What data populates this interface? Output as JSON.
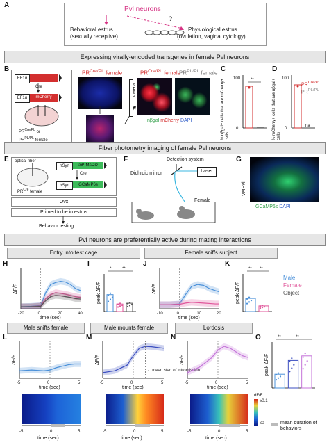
{
  "panelA": {
    "title": "Pvl neurons",
    "question": "?",
    "left_line1": "Behavioral estrus",
    "left_line2": "(sexually receptive)",
    "right_line1": "Physiological estrus",
    "right_line2": "(ovulation, vaginal cytology)"
  },
  "banners": {
    "b1": "Expressing virally-encoded transgenes in female Pvl neurons",
    "b2": "Fiber photometry imaging of female Pvl neurons",
    "b3": "Pvl neurons are preferentially active during mating interactions"
  },
  "panelB": {
    "promoter": "EF1α",
    "cre": "Cre",
    "reporter": "mCherry",
    "female_line1": "PR",
    "female_sup1": "Cre/PL",
    "female_or": "or",
    "female_line2": "PR",
    "female_sup2": "PL/PL",
    "female_suffix": "female",
    "img_label1": "PR",
    "img_sup1": "Cre/PL",
    "img_suffix1": " female",
    "img_label2": "PR",
    "img_sup2": "Cre/PL",
    "img_suffix2": " female",
    "img_label3": "PR",
    "img_sup3": "PL/PL",
    "img_suffix3": " female",
    "region": "VMHvl",
    "legend_green": "nβgal",
    "legend_red": "mCherry",
    "legend_blue": "DAPI"
  },
  "panelC": {
    "ylabel": "% nβgal+ cells that are mCherry+ cells",
    "sig": "**",
    "ticks": [
      "0",
      "100"
    ]
  },
  "panelD": {
    "ylabel": "% mCherry+ cells that are nβgal+ cells",
    "ticks": [
      "0",
      "100"
    ],
    "na": "na",
    "legend1": "PR",
    "legend1_sup": "Cre/PL",
    "legend2": "PR",
    "legend2_sup": "PL/PL",
    "legend1_color": "#d32f2f",
    "legend2_color": "#888888"
  },
  "panelE": {
    "fiber": "optical fiber",
    "female": "PR",
    "female_sup": "Cre",
    "female_suffix": " female",
    "promoter": "hSyn",
    "flipped": "GCaMP6s",
    "cre": "Cre",
    "gcamp": "GCaMP6s",
    "step1": "Ovx",
    "step2": "Primed to be in estrus",
    "step3": "Behavior testing"
  },
  "panelF": {
    "detection": "Detection system",
    "mirror": "Dichroic mirror",
    "laser": "Laser",
    "female": "Female"
  },
  "panelG": {
    "region": "VMHvl",
    "legend_green": "GCaMP6s",
    "legend_blue": "DAPI"
  },
  "section_titles": {
    "entry": "Entry into test cage",
    "sniffs": "Female sniffs subject",
    "male_sniffs": "Male sniffs female",
    "mounts": "Male mounts female",
    "lordosis": "Lordosis"
  },
  "legend_hij": {
    "male": "Male",
    "female": "Female",
    "object": "Object",
    "male_color": "#4a90d9",
    "female_color": "#e0559a",
    "object_color": "#555555"
  },
  "chart_data": [
    {
      "id": "H",
      "type": "line",
      "xlabel": "time (sec)",
      "ylabel": "ΔF/F",
      "xticks": [
        "-20",
        "0",
        "20",
        "40"
      ],
      "xlim": [
        -20,
        40
      ],
      "ylim": [
        0,
        1
      ],
      "series": [
        {
          "name": "Male",
          "x": [
            -20,
            -10,
            0,
            5,
            10,
            15,
            20,
            25,
            30,
            35,
            40
          ],
          "y": [
            0.05,
            0.06,
            0.08,
            0.4,
            0.6,
            0.65,
            0.68,
            0.66,
            0.6,
            0.5,
            0.45
          ]
        },
        {
          "name": "Female",
          "x": [
            -20,
            -10,
            0,
            5,
            10,
            15,
            20,
            25,
            30,
            35,
            40
          ],
          "y": [
            0.05,
            0.05,
            0.07,
            0.25,
            0.35,
            0.4,
            0.38,
            0.36,
            0.33,
            0.3,
            0.28
          ]
        },
        {
          "name": "Object",
          "x": [
            -20,
            -10,
            0,
            5,
            10,
            15,
            20,
            25,
            30,
            35,
            40
          ],
          "y": [
            0.05,
            0.05,
            0.06,
            0.2,
            0.3,
            0.33,
            0.32,
            0.3,
            0.28,
            0.25,
            0.24
          ]
        }
      ]
    },
    {
      "id": "I",
      "type": "bar",
      "ylabel": "peak ΔF/F",
      "categories": [
        "Male",
        "Female",
        "Object"
      ],
      "values": [
        0.45,
        0.2,
        0.22
      ],
      "sig": [
        "*",
        "**"
      ]
    },
    {
      "id": "J",
      "type": "line",
      "xlabel": "time (sec)",
      "ylabel": "ΔF/F",
      "xticks": [
        "-10",
        "0",
        "10",
        "20"
      ],
      "xlim": [
        -10,
        20
      ],
      "ylim": [
        0,
        1
      ],
      "series": [
        {
          "name": "Male",
          "x": [
            -10,
            -5,
            0,
            3,
            6,
            9,
            12,
            15,
            18,
            20
          ],
          "y": [
            0.1,
            0.1,
            0.12,
            0.35,
            0.55,
            0.6,
            0.58,
            0.5,
            0.45,
            0.42
          ]
        },
        {
          "name": "Female",
          "x": [
            -10,
            -5,
            0,
            3,
            6,
            9,
            12,
            15,
            18,
            20
          ],
          "y": [
            0.1,
            0.1,
            0.11,
            0.14,
            0.16,
            0.15,
            0.14,
            0.13,
            0.12,
            0.12
          ]
        }
      ]
    },
    {
      "id": "K",
      "type": "bar",
      "ylabel": "peak ΔF/F",
      "categories": [
        "Male",
        "Female"
      ],
      "values": [
        0.35,
        0.15
      ],
      "sig": [
        "**",
        "**"
      ]
    },
    {
      "id": "L",
      "type": "line",
      "xlabel": "time (sec)",
      "ylabel": "ΔF/F",
      "xticks": [
        "-5",
        "0",
        "5"
      ],
      "xlim": [
        -5,
        5
      ],
      "ylim": [
        0,
        1
      ],
      "series": [
        {
          "name": "Male sniffs female",
          "x": [
            -5,
            -3,
            -1,
            0,
            1,
            2,
            3,
            4,
            5
          ],
          "y": [
            0.2,
            0.22,
            0.2,
            0.22,
            0.28,
            0.32,
            0.36,
            0.38,
            0.38
          ]
        }
      ]
    },
    {
      "id": "M",
      "type": "line",
      "xlabel": "time (sec)",
      "ylabel": "ΔF/F",
      "xticks": [
        "-5",
        "0",
        "5"
      ],
      "xlim": [
        -5,
        5
      ],
      "ylim": [
        0,
        1
      ],
      "annotation": "mean start of intromission",
      "series": [
        {
          "name": "Male mounts female",
          "x": [
            -5,
            -3,
            -1,
            0,
            1,
            2,
            3,
            4,
            5
          ],
          "y": [
            0.15,
            0.2,
            0.35,
            0.6,
            0.8,
            0.85,
            0.84,
            0.82,
            0.8
          ]
        }
      ]
    },
    {
      "id": "N",
      "type": "line",
      "xlabel": "time (sec)",
      "ylabel": "ΔF/F",
      "xticks": [
        "-5",
        "0",
        "5"
      ],
      "xlim": [
        -5,
        5
      ],
      "ylim": [
        0,
        1
      ],
      "series": [
        {
          "name": "Lordosis",
          "x": [
            -5,
            -3,
            -1,
            0,
            1,
            2,
            3,
            4,
            5
          ],
          "y": [
            0.15,
            0.3,
            0.55,
            0.75,
            0.85,
            0.8,
            0.7,
            0.6,
            0.55
          ]
        }
      ]
    },
    {
      "id": "O",
      "type": "bar",
      "ylabel": "peak ΔF/F",
      "categories": [
        "Male sniffs female",
        "Male mounts female",
        "Lordosis"
      ],
      "values": [
        0.3,
        0.6,
        0.7
      ],
      "colors": [
        "#4a90d9",
        "#3b4ec0",
        "#c473d9"
      ],
      "sig": [
        "**",
        "**"
      ]
    }
  ],
  "heatmap": {
    "colorbar_label": "dF/F",
    "colorbar_max": "≥0.1",
    "colorbar_min": "≤0",
    "duration_label": "mean duration of behaviors",
    "xlabel": "time (sec)",
    "xticks": [
      "-5",
      "0",
      "5"
    ]
  }
}
